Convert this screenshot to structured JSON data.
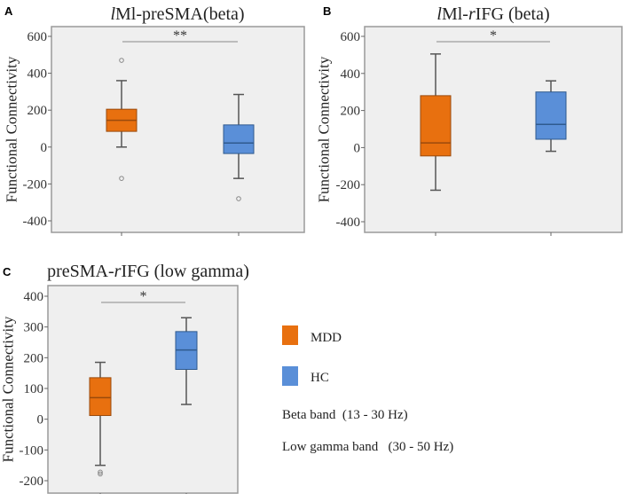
{
  "chart_data": [
    {
      "type": "box",
      "panel_label": "A",
      "title_parts": [
        {
          "text": "l",
          "italic": true
        },
        {
          "text": "Ml-preSMA(beta)",
          "italic": false
        }
      ],
      "ylabel": "Functional Connectivity",
      "ylim": [
        -430,
        630
      ],
      "yticks": [
        600,
        400,
        200,
        0,
        -200,
        -400
      ],
      "significance": "**",
      "series": [
        {
          "name": "MDD",
          "whisker_low": 0,
          "q1": 85,
          "median": 145,
          "q3": 205,
          "whisker_high": 360,
          "outliers": [
            470,
            -170
          ]
        },
        {
          "name": "HC",
          "whisker_low": -170,
          "q1": -35,
          "median": 22,
          "q3": 120,
          "whisker_high": 285,
          "outliers": [
            -280
          ]
        }
      ]
    },
    {
      "type": "box",
      "panel_label": "B",
      "title_parts": [
        {
          "text": "l",
          "italic": true
        },
        {
          "text": "Ml-",
          "italic": false
        },
        {
          "text": "r",
          "italic": true
        },
        {
          "text": "IFG (beta)",
          "italic": false
        }
      ],
      "ylabel": "Functional Connectivity",
      "ylim": [
        -430,
        630
      ],
      "yticks": [
        600,
        400,
        200,
        0,
        -200,
        -400
      ],
      "significance": "*",
      "series": [
        {
          "name": "MDD",
          "whisker_low": -230,
          "q1": -45,
          "median": 25,
          "q3": 280,
          "whisker_high": 505,
          "outliers": []
        },
        {
          "name": "HC",
          "whisker_low": -20,
          "q1": 45,
          "median": 125,
          "q3": 300,
          "whisker_high": 360,
          "outliers": []
        }
      ]
    },
    {
      "type": "box",
      "panel_label": "C",
      "title_parts": [
        {
          "text": "preSMA-",
          "italic": false
        },
        {
          "text": "r",
          "italic": true
        },
        {
          "text": "IFG (low gamma)",
          "italic": false
        }
      ],
      "ylabel": "Functional Connectivity",
      "ylim": [
        -235,
        435
      ],
      "yticks": [
        400,
        300,
        200,
        100,
        0,
        -100,
        -200
      ],
      "significance": "*",
      "series": [
        {
          "name": "MDD",
          "whisker_low": -150,
          "q1": 12,
          "median": 70,
          "q3": 135,
          "whisker_high": 185,
          "outliers": [
            -172,
            -178
          ]
        },
        {
          "name": "HC",
          "whisker_low": 48,
          "q1": 162,
          "median": 225,
          "q3": 285,
          "whisker_high": 330,
          "outliers": []
        }
      ]
    }
  ],
  "legend": {
    "items": [
      {
        "label": "MDD",
        "color": "#E8700F"
      },
      {
        "label": "HC",
        "color": "#5A8FD8"
      }
    ],
    "notes": [
      "Beta band  (13 - 30 Hz)",
      "Low gamma band   (30 - 50 Hz)"
    ]
  },
  "colors": {
    "MDD": "#E8700F",
    "HC": "#5A8FD8",
    "plot_bg": "#EFEFEF",
    "frame": "#9A9A9A"
  }
}
